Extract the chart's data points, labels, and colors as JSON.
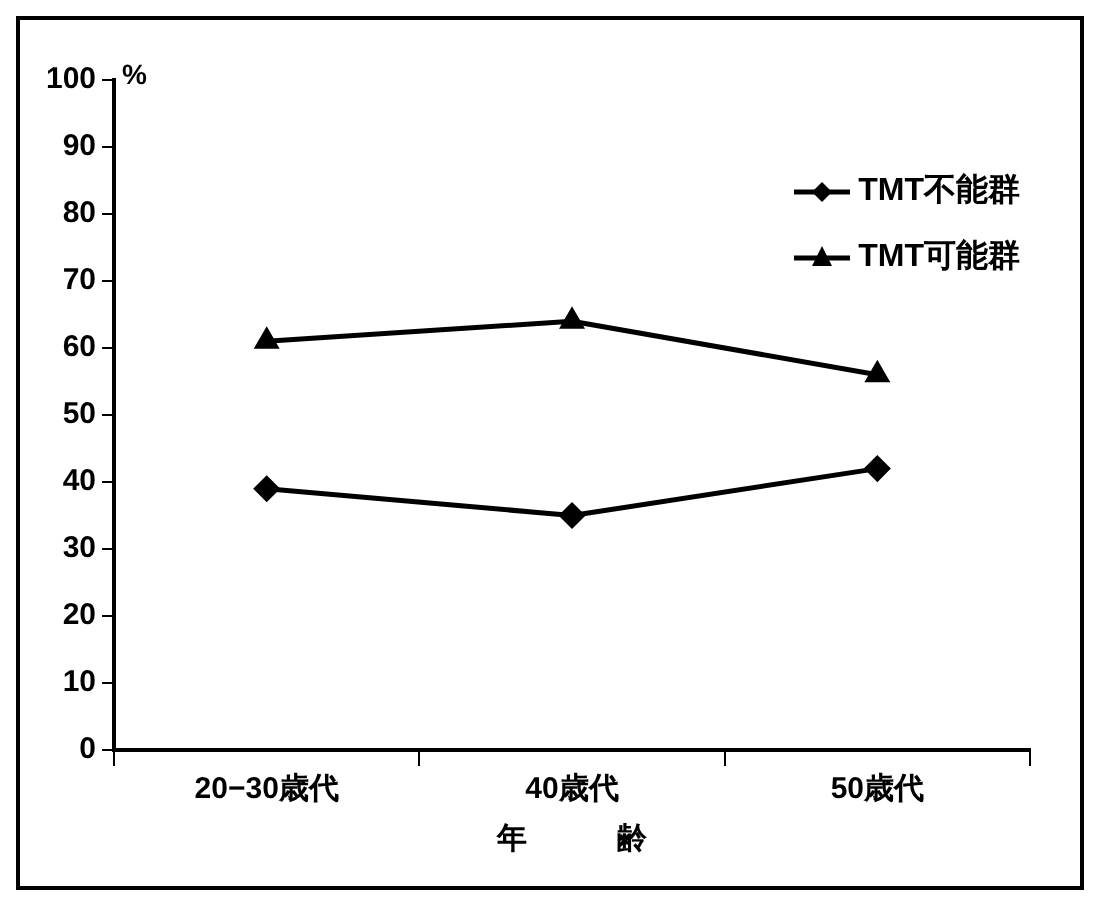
{
  "chart_data": {
    "type": "line",
    "xlabel": "年　　　齢",
    "ylabel": "%",
    "categories": [
      "20−30歳代",
      "40歳代",
      "50歳代"
    ],
    "series": [
      {
        "name": "TMT不能群",
        "color": "#000000",
        "marker": "diamond",
        "values": [
          39,
          35,
          42
        ]
      },
      {
        "name": "TMT可能群",
        "color": "#000000",
        "marker": "triangle",
        "values": [
          61,
          64,
          56
        ]
      }
    ],
    "ylim": [
      0,
      100
    ],
    "yticks": [
      0,
      10,
      20,
      30,
      40,
      50,
      60,
      70,
      80,
      90,
      100
    ],
    "grid": false,
    "legend": "top right",
    "line_style": "solid"
  }
}
